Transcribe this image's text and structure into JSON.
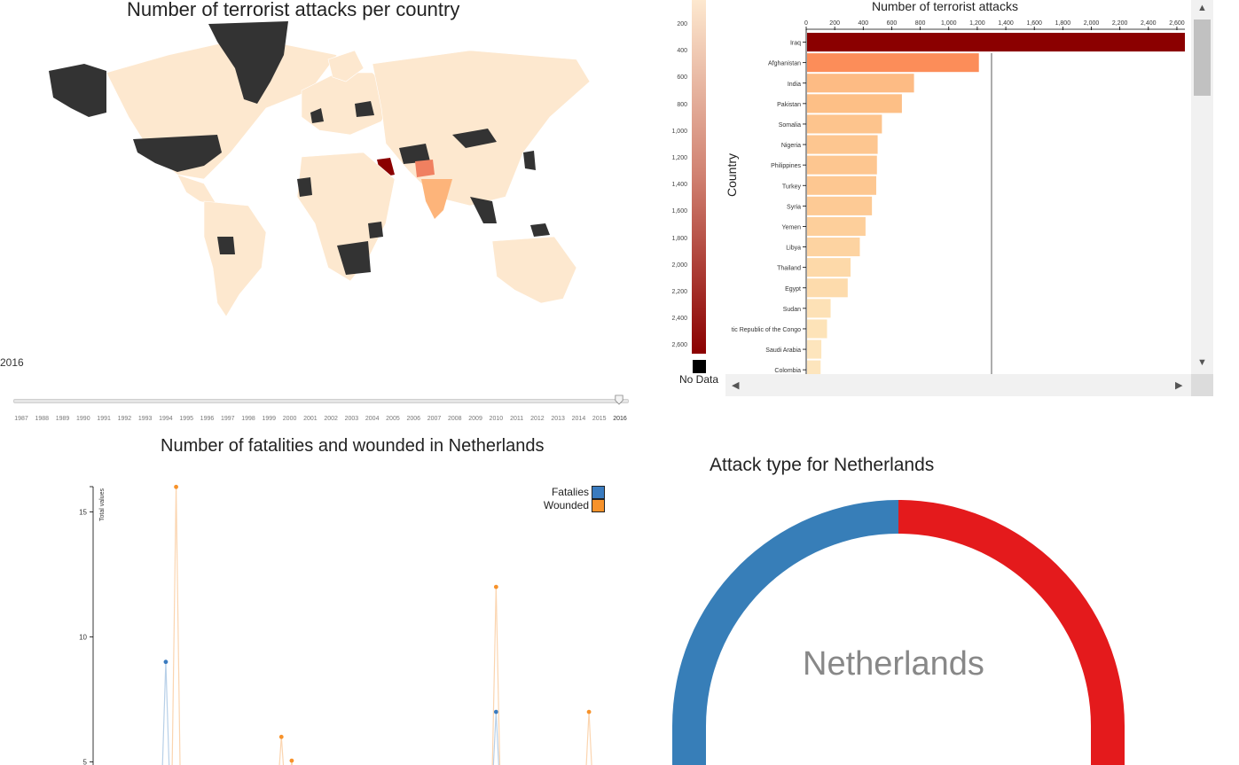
{
  "map": {
    "title": "Number of terrorist attacks per country",
    "selected_year": "2016",
    "years": [
      "1987",
      "1988",
      "1989",
      "1990",
      "1991",
      "1992",
      "1993",
      "1994",
      "1995",
      "1996",
      "1997",
      "1998",
      "1999",
      "2000",
      "2001",
      "2002",
      "2003",
      "2004",
      "2005",
      "2006",
      "2007",
      "2008",
      "2009",
      "2010",
      "2011",
      "2012",
      "2013",
      "2014",
      "2015",
      "2016"
    ],
    "slider_value_year": 2016,
    "colors": {
      "no_data": "#333333",
      "low": "#fde8cf",
      "mid": "#f08060",
      "high": "#8b0000"
    }
  },
  "color_scale": {
    "ticks": [
      "200",
      "400",
      "600",
      "800",
      "1,000",
      "1,200",
      "1,400",
      "1,600",
      "1,800",
      "2,000",
      "2,200",
      "2,400",
      "2,600"
    ],
    "no_data_label": "No Data"
  },
  "bar_chart_data": {
    "type": "bar",
    "orientation": "horizontal",
    "title": "Number of terrorist attacks",
    "ylabel": "Country",
    "xlim": [
      0,
      2650
    ],
    "x_ticks": [
      "0",
      "200",
      "400",
      "600",
      "800",
      "1,000",
      "1,200",
      "1,400",
      "1,600",
      "1,800",
      "2,000",
      "2,200",
      "2,400",
      "2,600"
    ],
    "reference_line": 1300,
    "categories": [
      "Iraq",
      "Afghanistan",
      "India",
      "Pakistan",
      "Somalia",
      "Nigeria",
      "Philippines",
      "Turkey",
      "Syria",
      "Yemen",
      "Libya",
      "Thailand",
      "Egypt",
      "Sudan",
      "tic Republic of the Congo",
      "Saudi Arabia",
      "Colombia"
    ],
    "values": [
      2650,
      1205,
      750,
      665,
      525,
      495,
      490,
      485,
      455,
      410,
      370,
      305,
      285,
      165,
      140,
      100,
      95
    ],
    "colors": [
      "#8b0000",
      "#fc8d59",
      "#fdbb84",
      "#fdbf86",
      "#fdc48d",
      "#fdc690",
      "#fdc690",
      "#fdc791",
      "#fdca95",
      "#fdcf9b",
      "#fdd3a1",
      "#fdd9a9",
      "#fddbac",
      "#fde1b6",
      "#fde3b8",
      "#fde5bd",
      "#fde5bd"
    ]
  },
  "chart_data": {
    "type": "line",
    "title": "Number of fatalities and wounded in Netherlands",
    "ylabel": "Total values",
    "ylim": [
      4.9,
      16
    ],
    "y_ticks": [
      "5",
      "10",
      "15"
    ],
    "series": [
      {
        "name": "Fatalies",
        "color": "#3a7bbf",
        "points": [
          [
            1994,
            9
          ],
          [
            2010,
            7
          ]
        ]
      },
      {
        "name": "Wounded",
        "color": "#f7922a",
        "points": [
          [
            1994.5,
            16
          ],
          [
            1999.6,
            6
          ],
          [
            2000.1,
            5.05
          ],
          [
            2010,
            12
          ],
          [
            2014.5,
            7
          ]
        ]
      }
    ]
  },
  "donut": {
    "title": "Attack type for Netherlands",
    "center_label": "Netherlands",
    "slices": [
      {
        "color": "#e41a1c",
        "value": 50
      },
      {
        "color": "#377eb8",
        "value": 50
      }
    ]
  }
}
